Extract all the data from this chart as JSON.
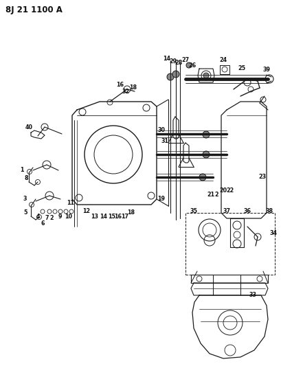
{
  "title": "8J 21 1100 A",
  "bg_color": "#ffffff",
  "line_color": "#1a1a1a",
  "text_color": "#111111",
  "fig_width": 4.1,
  "fig_height": 5.33,
  "dpi": 100
}
